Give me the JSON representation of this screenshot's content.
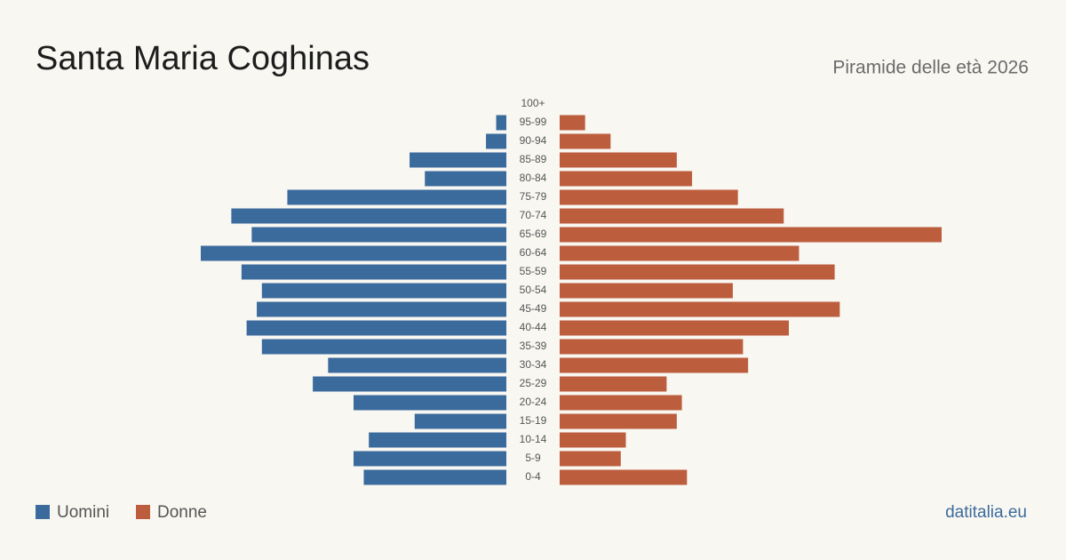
{
  "chart_data": {
    "type": "pyramid",
    "title": "Santa Maria Coghinas",
    "subtitle": "Piramide delle età 2026",
    "source": "datitalia.eu",
    "categories": [
      "100+",
      "95-99",
      "90-94",
      "85-89",
      "80-84",
      "75-79",
      "70-74",
      "65-69",
      "60-64",
      "55-59",
      "50-54",
      "45-49",
      "40-44",
      "35-39",
      "30-34",
      "25-29",
      "20-24",
      "15-19",
      "10-14",
      "5-9",
      "0-4"
    ],
    "xlim": [
      0,
      75
    ],
    "series": [
      {
        "name": "Uomini",
        "color": "#3a6b9c",
        "values": [
          0,
          2,
          4,
          19,
          16,
          43,
          54,
          50,
          60,
          52,
          48,
          49,
          51,
          48,
          35,
          38,
          30,
          18,
          27,
          30,
          28
        ]
      },
      {
        "name": "Donne",
        "color": "#bc5e3d",
        "values": [
          0,
          5,
          10,
          23,
          26,
          35,
          44,
          75,
          47,
          54,
          34,
          55,
          45,
          36,
          37,
          21,
          24,
          23,
          13,
          12,
          25
        ]
      }
    ]
  }
}
